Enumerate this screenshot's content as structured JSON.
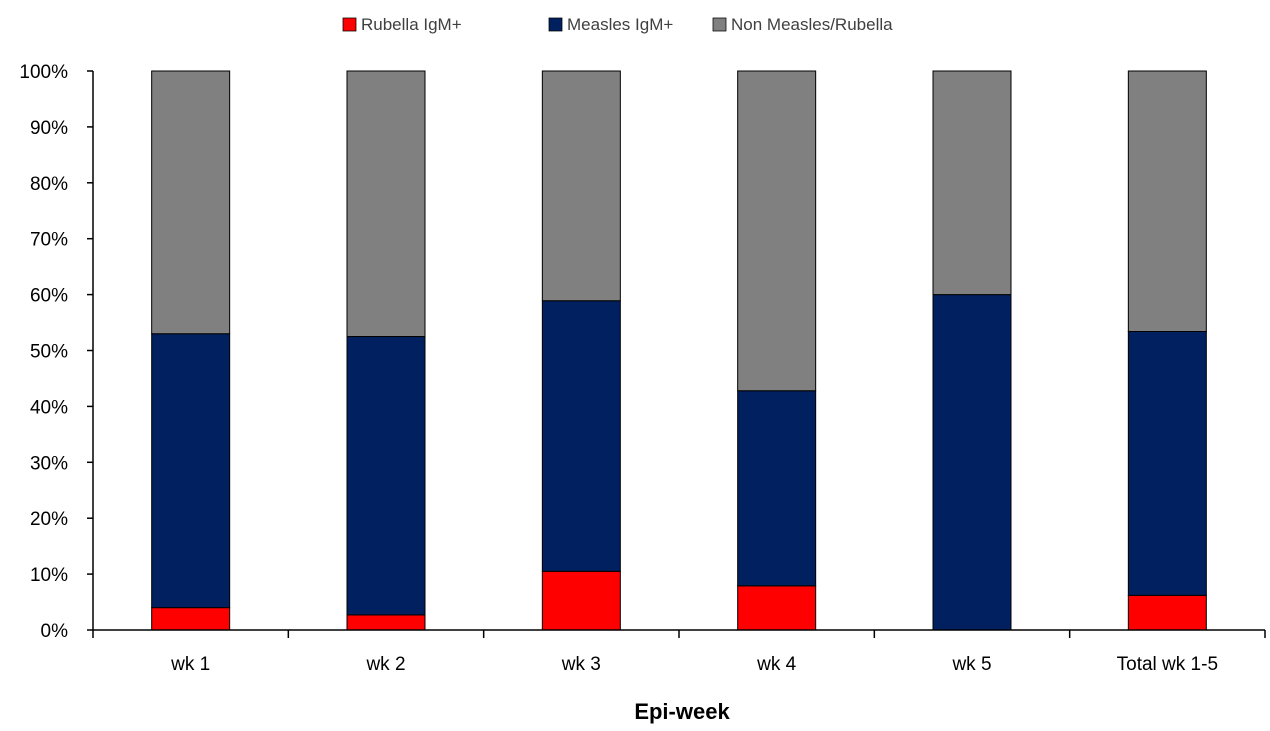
{
  "chart_data": {
    "type": "bar",
    "stacked": true,
    "percent_stacked": true,
    "categories": [
      "wk 1",
      "wk 2",
      "wk 3",
      "wk 4",
      "wk 5",
      "Total wk 1-5"
    ],
    "series": [
      {
        "name": "Rubella IgM+",
        "color": "#ff0000",
        "values": [
          4,
          2.7,
          10.5,
          7.9,
          0,
          6.2
        ]
      },
      {
        "name": "Measles IgM+",
        "color": "#002060",
        "values": [
          49,
          49.8,
          48.4,
          34.9,
          60,
          47.2
        ]
      },
      {
        "name": "Non Measles/Rubella",
        "color": "#808080",
        "values": [
          47,
          47.5,
          41.1,
          57.2,
          40,
          46.6
        ]
      }
    ],
    "title": "",
    "xlabel": "Epi-week",
    "ylabel": "",
    "ylim": [
      0,
      100
    ],
    "yticks": [
      0,
      10,
      20,
      30,
      40,
      50,
      60,
      70,
      80,
      90,
      100
    ],
    "ytick_format": "percent",
    "legend_position": "top",
    "grid": false
  }
}
